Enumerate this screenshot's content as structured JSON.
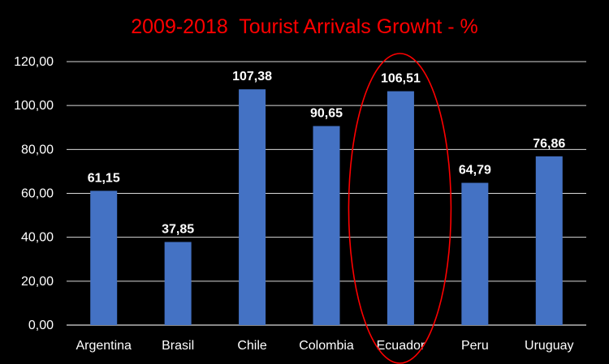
{
  "chart_data": {
    "type": "bar",
    "title": "2009-2018  Tourist Arrivals Growht - %",
    "xlabel": "",
    "ylabel": "",
    "categories": [
      "Argentina",
      "Brasil",
      "Chile",
      "Colombia",
      "Ecuador",
      "Peru",
      "Uruguay"
    ],
    "values": [
      61.15,
      37.85,
      107.38,
      90.65,
      106.51,
      64.79,
      76.86
    ],
    "value_labels": [
      "61,15",
      "37,85",
      "107,38",
      "90,65",
      "106,51",
      "64,79",
      "76,86"
    ],
    "ylim": [
      0,
      120
    ],
    "yticks": [
      "0,00",
      "20,00",
      "40,00",
      "60,00",
      "80,00",
      "100,00",
      "120,00"
    ],
    "grid": true,
    "legend": "none",
    "highlight": {
      "category": "Ecuador",
      "shape": "ellipse"
    }
  },
  "colors": {
    "background": "#000000",
    "bar": "#4472c4",
    "title": "#ff0000",
    "text": "#ffffff",
    "grid": "#d9d9d9",
    "highlight": "#ff0000"
  }
}
